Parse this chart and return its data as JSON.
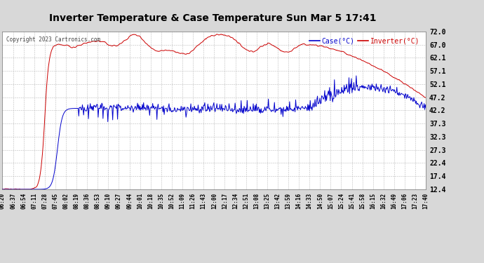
{
  "title": "Inverter Temperature & Case Temperature Sun Mar 5 17:41",
  "copyright": "Copyright 2023 Cartronics.com",
  "legend_case": "Case(°C)",
  "legend_inverter": "Inverter(°C)",
  "yticks": [
    12.4,
    17.4,
    22.4,
    27.3,
    32.3,
    37.3,
    42.2,
    47.2,
    52.1,
    57.1,
    62.1,
    67.0,
    72.0
  ],
  "ymin": 12.4,
  "ymax": 72.0,
  "bg_color": "#d8d8d8",
  "plot_bg_color": "#ffffff",
  "case_color": "#cc0000",
  "inverter_color": "#0000cc",
  "grid_color": "#bbbbbb",
  "title_color": "#000000",
  "copyright_color": "#444444",
  "n_points": 700,
  "xtick_labels": [
    "06:20",
    "06:37",
    "06:54",
    "07:11",
    "07:28",
    "07:45",
    "08:02",
    "08:19",
    "08:36",
    "08:53",
    "09:10",
    "09:27",
    "09:44",
    "10:01",
    "10:18",
    "10:35",
    "10:52",
    "11:09",
    "11:26",
    "11:43",
    "12:00",
    "12:17",
    "12:34",
    "12:51",
    "13:08",
    "13:25",
    "13:42",
    "13:59",
    "14:16",
    "14:33",
    "14:50",
    "15:07",
    "15:24",
    "15:41",
    "15:58",
    "16:15",
    "16:32",
    "16:49",
    "17:06",
    "17:23",
    "17:40"
  ]
}
